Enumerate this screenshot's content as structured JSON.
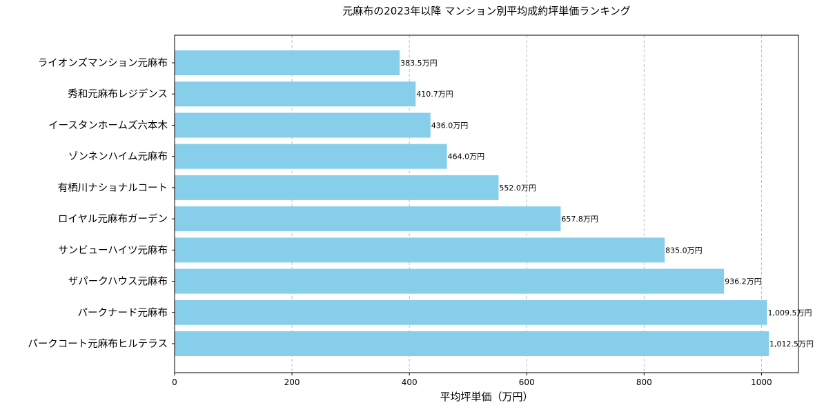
{
  "chart_data": {
    "type": "bar",
    "orientation": "horizontal",
    "title": "元麻布の2023年以降 マンション別平均成約坪単価ランキング",
    "xlabel": "平均坪単価（万円）",
    "ylabel": "",
    "xlim": [
      0,
      1063
    ],
    "xticks": [
      0,
      200,
      400,
      600,
      800,
      1000
    ],
    "grid": "x-dashed",
    "bar_color": "#87CEEB",
    "categories": [
      "ライオンズマンション元麻布",
      "秀和元麻布レジデンス",
      "イースタンホームズ六本木",
      "ゾンネンハイム元麻布",
      "有栖川ナショナルコート",
      "ロイヤル元麻布ガーデン",
      "サンビューハイツ元麻布",
      "ザパークハウス元麻布",
      "パークナード元麻布",
      "パークコート元麻布ヒルテラス"
    ],
    "values": [
      383.5,
      410.7,
      436.0,
      464.0,
      552.0,
      657.8,
      835.0,
      936.2,
      1009.5,
      1012.5
    ],
    "data_labels": [
      "383.5万円",
      "410.7万円",
      "436.0万円",
      "464.0万円",
      "552.0万円",
      "657.8万円",
      "835.0万円",
      "936.2万円",
      "1,009.5万円",
      "1,012.5万円"
    ]
  }
}
